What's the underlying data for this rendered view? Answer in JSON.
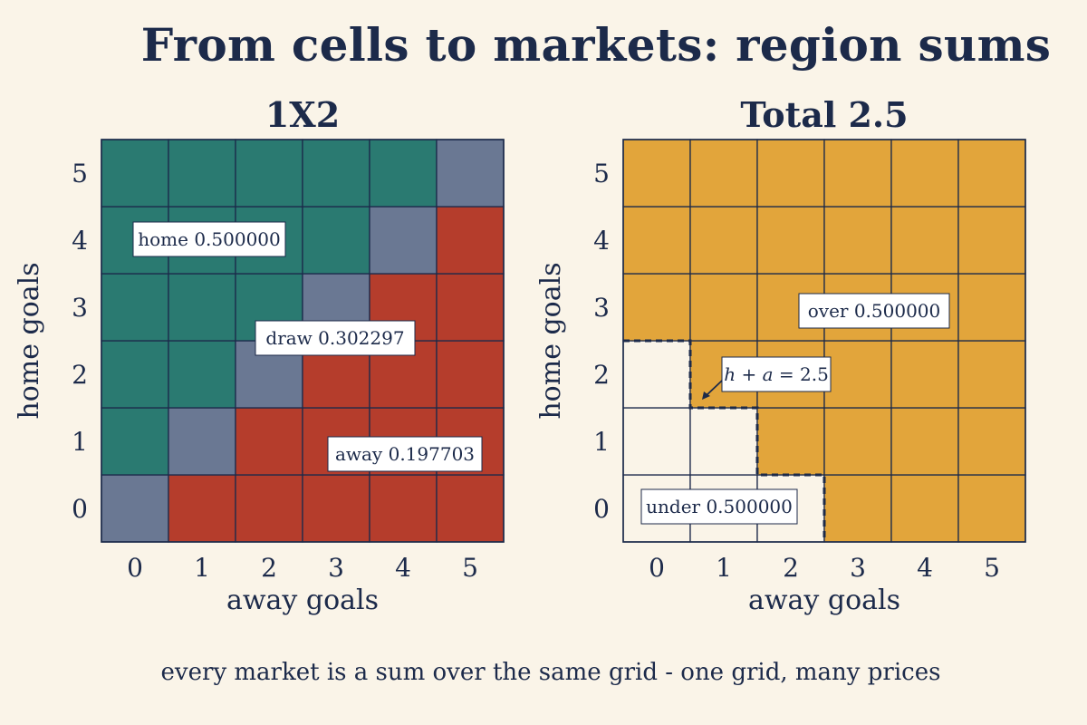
{
  "title": "From cells to markets: region sums",
  "caption": "every market is a sum over the same grid - one grid, many prices",
  "colors": {
    "background": "#faf4e8",
    "ink": "#1c2a4a",
    "home": "#2a7a71",
    "draw": "#6a7893",
    "away": "#b53d2c",
    "over": "#e2a53b",
    "under": "#faf4e8"
  },
  "panels": [
    {
      "title": "1X2",
      "xlabel": "away goals",
      "ylabel": "home goals",
      "x_ticks": [
        "0",
        "1",
        "2",
        "3",
        "4",
        "5"
      ],
      "y_ticks": [
        "0",
        "1",
        "2",
        "3",
        "4",
        "5"
      ],
      "labels": {
        "home": "home 0.500000",
        "draw": "draw 0.302297",
        "away": "away 0.197703"
      }
    },
    {
      "title": "Total 2.5",
      "xlabel": "away goals",
      "ylabel": "home goals",
      "x_ticks": [
        "0",
        "1",
        "2",
        "3",
        "4",
        "5"
      ],
      "y_ticks": [
        "0",
        "1",
        "2",
        "3",
        "4",
        "5"
      ],
      "labels": {
        "over": "over 0.500000",
        "under": "under 0.500000",
        "boundary_h": "h",
        "boundary_rest": " + ",
        "boundary_a": "a",
        "boundary_value": " = 2.5"
      }
    }
  ],
  "chart_data": [
    {
      "type": "heatmap",
      "title": "1X2",
      "xlabel": "away goals",
      "ylabel": "home goals",
      "x": [
        0,
        1,
        2,
        3,
        4,
        5
      ],
      "y": [
        0,
        1,
        2,
        3,
        4,
        5
      ],
      "regions": {
        "home": {
          "rule": "home goals > away goals",
          "probability": 0.5
        },
        "draw": {
          "rule": "home goals = away goals",
          "probability": 0.302297
        },
        "away": {
          "rule": "home goals < away goals",
          "probability": 0.197703
        }
      }
    },
    {
      "type": "heatmap",
      "title": "Total 2.5",
      "xlabel": "away goals",
      "ylabel": "home goals",
      "x": [
        0,
        1,
        2,
        3,
        4,
        5
      ],
      "y": [
        0,
        1,
        2,
        3,
        4,
        5
      ],
      "line": 2.5,
      "regions": {
        "over": {
          "rule": "home + away > 2.5",
          "probability": 0.5
        },
        "under": {
          "rule": "home + away < 2.5",
          "probability": 0.5
        }
      }
    }
  ]
}
